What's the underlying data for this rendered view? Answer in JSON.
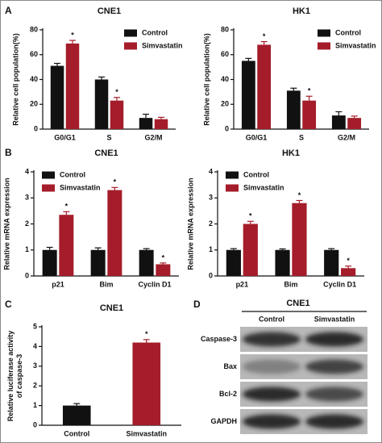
{
  "panel_labels": [
    "A",
    "B",
    "C",
    "D"
  ],
  "chart_data": [
    {
      "type": "bar",
      "title": "CNE1",
      "y_label": [
        "Relative cell population(%)"
      ],
      "categories": [
        "G0/G1",
        "S",
        "G2/M"
      ],
      "ylim": [
        0,
        80
      ],
      "yticks": [
        0,
        20,
        40,
        60,
        80
      ],
      "legend": "upper right",
      "series": [
        {
          "name": "Control",
          "color": "#111111",
          "values": [
            51,
            40,
            9
          ],
          "errors": [
            2,
            2,
            3
          ],
          "significance": [
            null,
            null,
            null
          ]
        },
        {
          "name": "Simvastatin",
          "color": "#a51d2a",
          "values": [
            69,
            23,
            8
          ],
          "errors": [
            2.5,
            2.5,
            1.5
          ],
          "significance": [
            "*",
            "*",
            null
          ]
        }
      ]
    },
    {
      "type": "bar",
      "title": "HK1",
      "y_label": [
        "Relative cell population(%)"
      ],
      "categories": [
        "G0/G1",
        "S",
        "G2/M"
      ],
      "ylim": [
        0,
        80
      ],
      "yticks": [
        0,
        20,
        40,
        60,
        80
      ],
      "legend": "upper right",
      "series": [
        {
          "name": "Control",
          "color": "#111111",
          "values": [
            55,
            31,
            11
          ],
          "errors": [
            2,
            2,
            3
          ],
          "significance": [
            null,
            null,
            null
          ]
        },
        {
          "name": "Simvastatin",
          "color": "#a51d2a",
          "values": [
            68,
            23,
            9
          ],
          "errors": [
            2.5,
            3.5,
            1.5
          ],
          "significance": [
            "*",
            "*",
            null
          ]
        }
      ]
    },
    {
      "type": "bar",
      "title": "CNE1",
      "y_label": [
        "Relative mRNA expression"
      ],
      "categories": [
        "p21",
        "Bim",
        "Cyclin D1"
      ],
      "ylim": [
        0,
        4
      ],
      "yticks": [
        0,
        1,
        2,
        3,
        4
      ],
      "legend": "upper left",
      "series": [
        {
          "name": "Control",
          "color": "#111111",
          "values": [
            1,
            1,
            1
          ],
          "errors": [
            0.1,
            0.08,
            0.05
          ],
          "significance": [
            null,
            null,
            null
          ]
        },
        {
          "name": "Simvastatin",
          "color": "#a51d2a",
          "values": [
            2.35,
            3.3,
            0.45
          ],
          "errors": [
            0.12,
            0.1,
            0.05
          ],
          "significance": [
            "*",
            "*",
            "*"
          ]
        }
      ]
    },
    {
      "type": "bar",
      "title": "HK1",
      "y_label": [
        "Relative mRNA expression"
      ],
      "categories": [
        "p21",
        "Bim",
        "Cyclin D1"
      ],
      "ylim": [
        0,
        4
      ],
      "yticks": [
        0,
        1,
        2,
        3,
        4
      ],
      "legend": "upper left",
      "series": [
        {
          "name": "Control",
          "color": "#111111",
          "values": [
            1,
            1,
            1
          ],
          "errors": [
            0.05,
            0.04,
            0.05
          ],
          "significance": [
            null,
            null,
            null
          ]
        },
        {
          "name": "Simvastatin",
          "color": "#a51d2a",
          "values": [
            2.0,
            2.8,
            0.3
          ],
          "errors": [
            0.1,
            0.1,
            0.08
          ],
          "significance": [
            "*",
            "*",
            "*"
          ]
        }
      ]
    },
    {
      "type": "bar",
      "title": "CNE1",
      "y_label": [
        "Relative luciferase activity",
        "of caspase-3"
      ],
      "categories": [
        "Control",
        "Simvastatin"
      ],
      "ylim": [
        0,
        5
      ],
      "yticks": [
        0,
        1,
        2,
        3,
        4,
        5
      ],
      "values": [
        1.0,
        4.2
      ],
      "errors": [
        0.1,
        0.15
      ],
      "colors": [
        "#111111",
        "#a51d2a"
      ],
      "significance": [
        null,
        "*"
      ]
    }
  ],
  "blot": {
    "title": "CNE1",
    "columns": [
      "Control",
      "Simvastatin"
    ],
    "rows": [
      "Caspase-3",
      "Bax",
      "Bcl-2",
      "GAPDH"
    ]
  }
}
